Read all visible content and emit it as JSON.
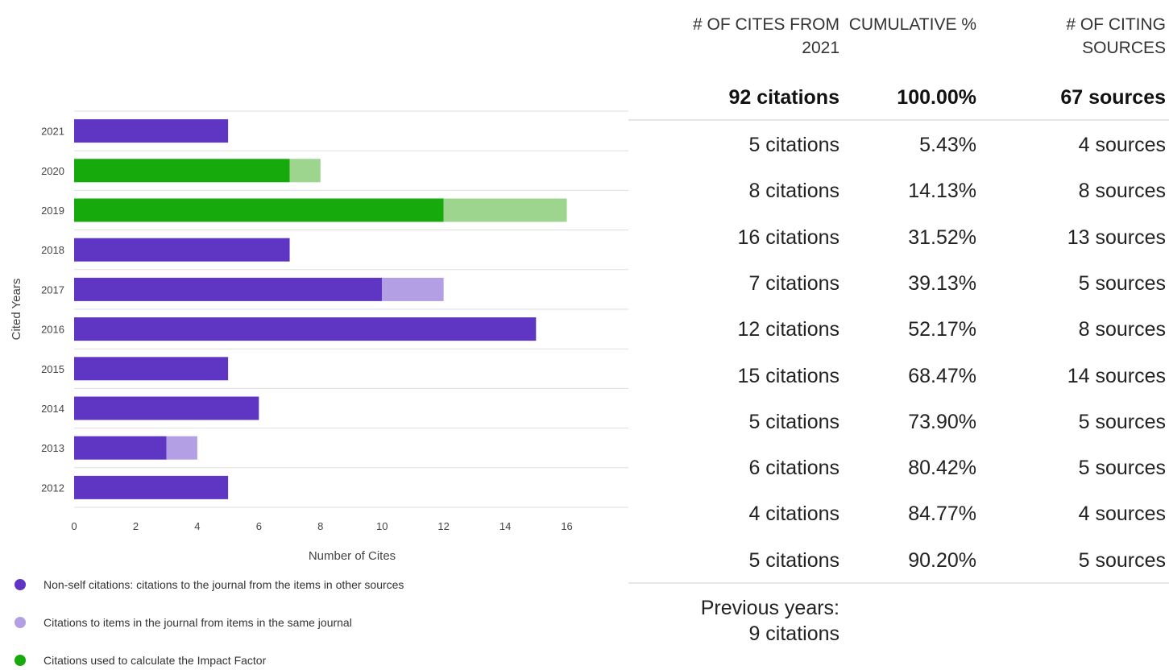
{
  "chart_data": {
    "type": "bar",
    "orientation": "horizontal",
    "stacked": true,
    "categories": [
      "2021",
      "2020",
      "2019",
      "2018",
      "2017",
      "2016",
      "2015",
      "2014",
      "2013",
      "2012"
    ],
    "series": [
      {
        "name": "Non-self citations: citations to the journal from the items in other sources",
        "values": [
          5,
          0,
          0,
          7,
          10,
          15,
          5,
          6,
          3,
          5
        ],
        "color": "#5f36c3"
      },
      {
        "name": "Citations to items in the journal from items in the same journal",
        "values": [
          0,
          0,
          0,
          0,
          2,
          0,
          0,
          0,
          1,
          0
        ],
        "color": "#b39fe3"
      },
      {
        "name": "Citations used to calculate the Impact Factor",
        "values": [
          0,
          7,
          12,
          0,
          0,
          0,
          0,
          0,
          0,
          0
        ],
        "color": "#16aa0c"
      },
      {
        "name": "",
        "values": [
          0,
          1,
          4,
          0,
          0,
          0,
          0,
          0,
          0,
          0
        ],
        "color": "#9dd58f"
      }
    ],
    "xlabel": "Number of Cites",
    "ylabel": "Cited Years",
    "xlim": [
      0,
      18
    ],
    "xticks": [
      0,
      2,
      4,
      6,
      8,
      10,
      12,
      14,
      16
    ],
    "grid": true,
    "legend_position": "bottom-left"
  },
  "table": {
    "headers": {
      "cites": "# OF CITES FROM 2021",
      "cumulative": "CUMULATIVE %",
      "sources": "# OF CITING SOURCES"
    },
    "total": {
      "cites": "92 citations",
      "cumulative": "100.00%",
      "sources": "67 sources"
    },
    "rows": [
      {
        "cites": "5 citations",
        "cumulative": "5.43%",
        "sources": "4 sources"
      },
      {
        "cites": "8 citations",
        "cumulative": "14.13%",
        "sources": "8 sources"
      },
      {
        "cites": "16 citations",
        "cumulative": "31.52%",
        "sources": "13 sources"
      },
      {
        "cites": "7 citations",
        "cumulative": "39.13%",
        "sources": "5 sources"
      },
      {
        "cites": "12 citations",
        "cumulative": "52.17%",
        "sources": "8 sources"
      },
      {
        "cites": "15 citations",
        "cumulative": "68.47%",
        "sources": "14 sources"
      },
      {
        "cites": "5 citations",
        "cumulative": "73.90%",
        "sources": "5 sources"
      },
      {
        "cites": "6 citations",
        "cumulative": "80.42%",
        "sources": "5 sources"
      },
      {
        "cites": "4 citations",
        "cumulative": "84.77%",
        "sources": "4 sources"
      },
      {
        "cites": "5 citations",
        "cumulative": "90.20%",
        "sources": "5 sources"
      }
    ],
    "previous_years_label": "Previous years:",
    "previous_years_value": "9 citations"
  }
}
